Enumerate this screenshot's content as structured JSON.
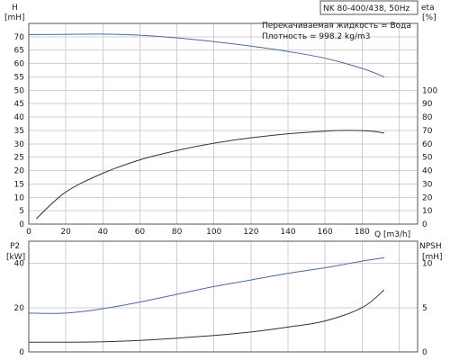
{
  "chart_data": [
    {
      "type": "line",
      "title": "NK 80-400/438, 50Hz",
      "annotations": [
        "Перекачиваемая жидкость = Вода",
        "Плотность = 998.2 kg/m3"
      ],
      "x_axis": {
        "label": "Q [m3/h]",
        "range": [
          0,
          210
        ],
        "ticks": [
          0,
          20,
          40,
          60,
          80,
          100,
          120,
          140,
          160,
          180
        ]
      },
      "y_left": {
        "label_top": "H",
        "label_unit": "[mH]",
        "range": [
          0,
          75
        ],
        "ticks": [
          0,
          5,
          10,
          15,
          20,
          25,
          30,
          35,
          40,
          45,
          50,
          55,
          60,
          65,
          70
        ]
      },
      "y_right": {
        "label_top": "eta",
        "label_unit": "[%]",
        "range": [
          0,
          150
        ],
        "ticks": [
          0,
          10,
          20,
          30,
          40,
          50,
          60,
          70,
          80,
          90,
          100
        ]
      },
      "grid": true,
      "series": [
        {
          "axis": "left",
          "color": "#4a6a9c",
          "points": [
            [
              0,
              70.8
            ],
            [
              20,
              70.9
            ],
            [
              40,
              71.0
            ],
            [
              60,
              70.6
            ],
            [
              80,
              69.6
            ],
            [
              100,
              68.2
            ],
            [
              120,
              66.5
            ],
            [
              140,
              64.5
            ],
            [
              160,
              62.0
            ],
            [
              180,
              58.2
            ],
            [
              192,
              55.0
            ]
          ]
        },
        {
          "axis": "right",
          "color": "#333333",
          "points": [
            [
              4,
              4
            ],
            [
              20,
              24
            ],
            [
              40,
              38
            ],
            [
              60,
              48
            ],
            [
              80,
              55
            ],
            [
              100,
              60.5
            ],
            [
              120,
              64.5
            ],
            [
              140,
              67.5
            ],
            [
              160,
              69.5
            ],
            [
              172,
              70
            ],
            [
              185,
              69.5
            ],
            [
              192,
              68
            ]
          ]
        }
      ]
    },
    {
      "type": "line",
      "x_axis": {
        "range": [
          0,
          210
        ]
      },
      "y_left": {
        "label_top": "P2",
        "label_unit": "[kW]",
        "range": [
          0,
          50
        ],
        "ticks": [
          0,
          20,
          40
        ]
      },
      "y_right": {
        "label_top": "NPSH",
        "label_unit": "[mH]",
        "range": [
          0,
          12.5
        ],
        "ticks": [
          0,
          5,
          10
        ]
      },
      "grid": true,
      "series": [
        {
          "axis": "left",
          "color": "#4a6a9c",
          "points": [
            [
              0,
              17.5
            ],
            [
              20,
              17.5
            ],
            [
              40,
              19.5
            ],
            [
              60,
              22.5
            ],
            [
              80,
              26
            ],
            [
              100,
              29.5
            ],
            [
              120,
              32.5
            ],
            [
              140,
              35.5
            ],
            [
              160,
              38
            ],
            [
              180,
              41
            ],
            [
              192,
              42.5
            ]
          ]
        },
        {
          "axis": "right",
          "color": "#333333",
          "points": [
            [
              0,
              1.1
            ],
            [
              20,
              1.1
            ],
            [
              40,
              1.15
            ],
            [
              60,
              1.3
            ],
            [
              80,
              1.55
            ],
            [
              100,
              1.85
            ],
            [
              120,
              2.25
            ],
            [
              140,
              2.8
            ],
            [
              160,
              3.5
            ],
            [
              180,
              5.0
            ],
            [
              192,
              7.0
            ]
          ]
        }
      ]
    }
  ]
}
